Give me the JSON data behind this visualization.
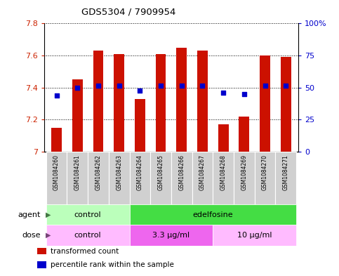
{
  "title": "GDS5304 / 7909954",
  "samples": [
    "GSM1084260",
    "GSM1084261",
    "GSM1084262",
    "GSM1084263",
    "GSM1084264",
    "GSM1084265",
    "GSM1084266",
    "GSM1084267",
    "GSM1084268",
    "GSM1084269",
    "GSM1084270",
    "GSM1084271"
  ],
  "bar_values": [
    7.15,
    7.45,
    7.63,
    7.61,
    7.33,
    7.61,
    7.65,
    7.63,
    7.17,
    7.22,
    7.6,
    7.59
  ],
  "percentile_values": [
    7.35,
    7.4,
    7.41,
    7.41,
    7.38,
    7.41,
    7.41,
    7.41,
    7.37,
    7.36,
    7.41,
    7.41
  ],
  "bar_color": "#cc1100",
  "percentile_color": "#0000cc",
  "ymin": 7.0,
  "ymax": 7.8,
  "yticks": [
    7.0,
    7.2,
    7.4,
    7.6,
    7.8
  ],
  "ytick_labels_left": [
    "7",
    "7.2",
    "7.4",
    "7.6",
    "7.8"
  ],
  "ytick_labels_right": [
    "0",
    "25",
    "50",
    "75",
    "100%"
  ],
  "agent_groups": [
    {
      "label": "control",
      "start": 0,
      "end": 4,
      "color": "#bbffbb"
    },
    {
      "label": "edelfosine",
      "start": 4,
      "end": 12,
      "color": "#44dd44"
    }
  ],
  "dose_groups": [
    {
      "label": "control",
      "start": 0,
      "end": 4,
      "color": "#ffbbff"
    },
    {
      "label": "3.3 μg/ml",
      "start": 4,
      "end": 8,
      "color": "#ee66ee"
    },
    {
      "label": "10 μg/ml",
      "start": 8,
      "end": 12,
      "color": "#ffbbff"
    }
  ],
  "tick_label_color_left": "#cc2200",
  "tick_label_color_right": "#0000cc",
  "legend_items": [
    {
      "label": "transformed count",
      "color": "#cc1100"
    },
    {
      "label": "percentile rank within the sample",
      "color": "#0000cc"
    }
  ],
  "bar_width": 0.5,
  "background_color": "#ffffff"
}
